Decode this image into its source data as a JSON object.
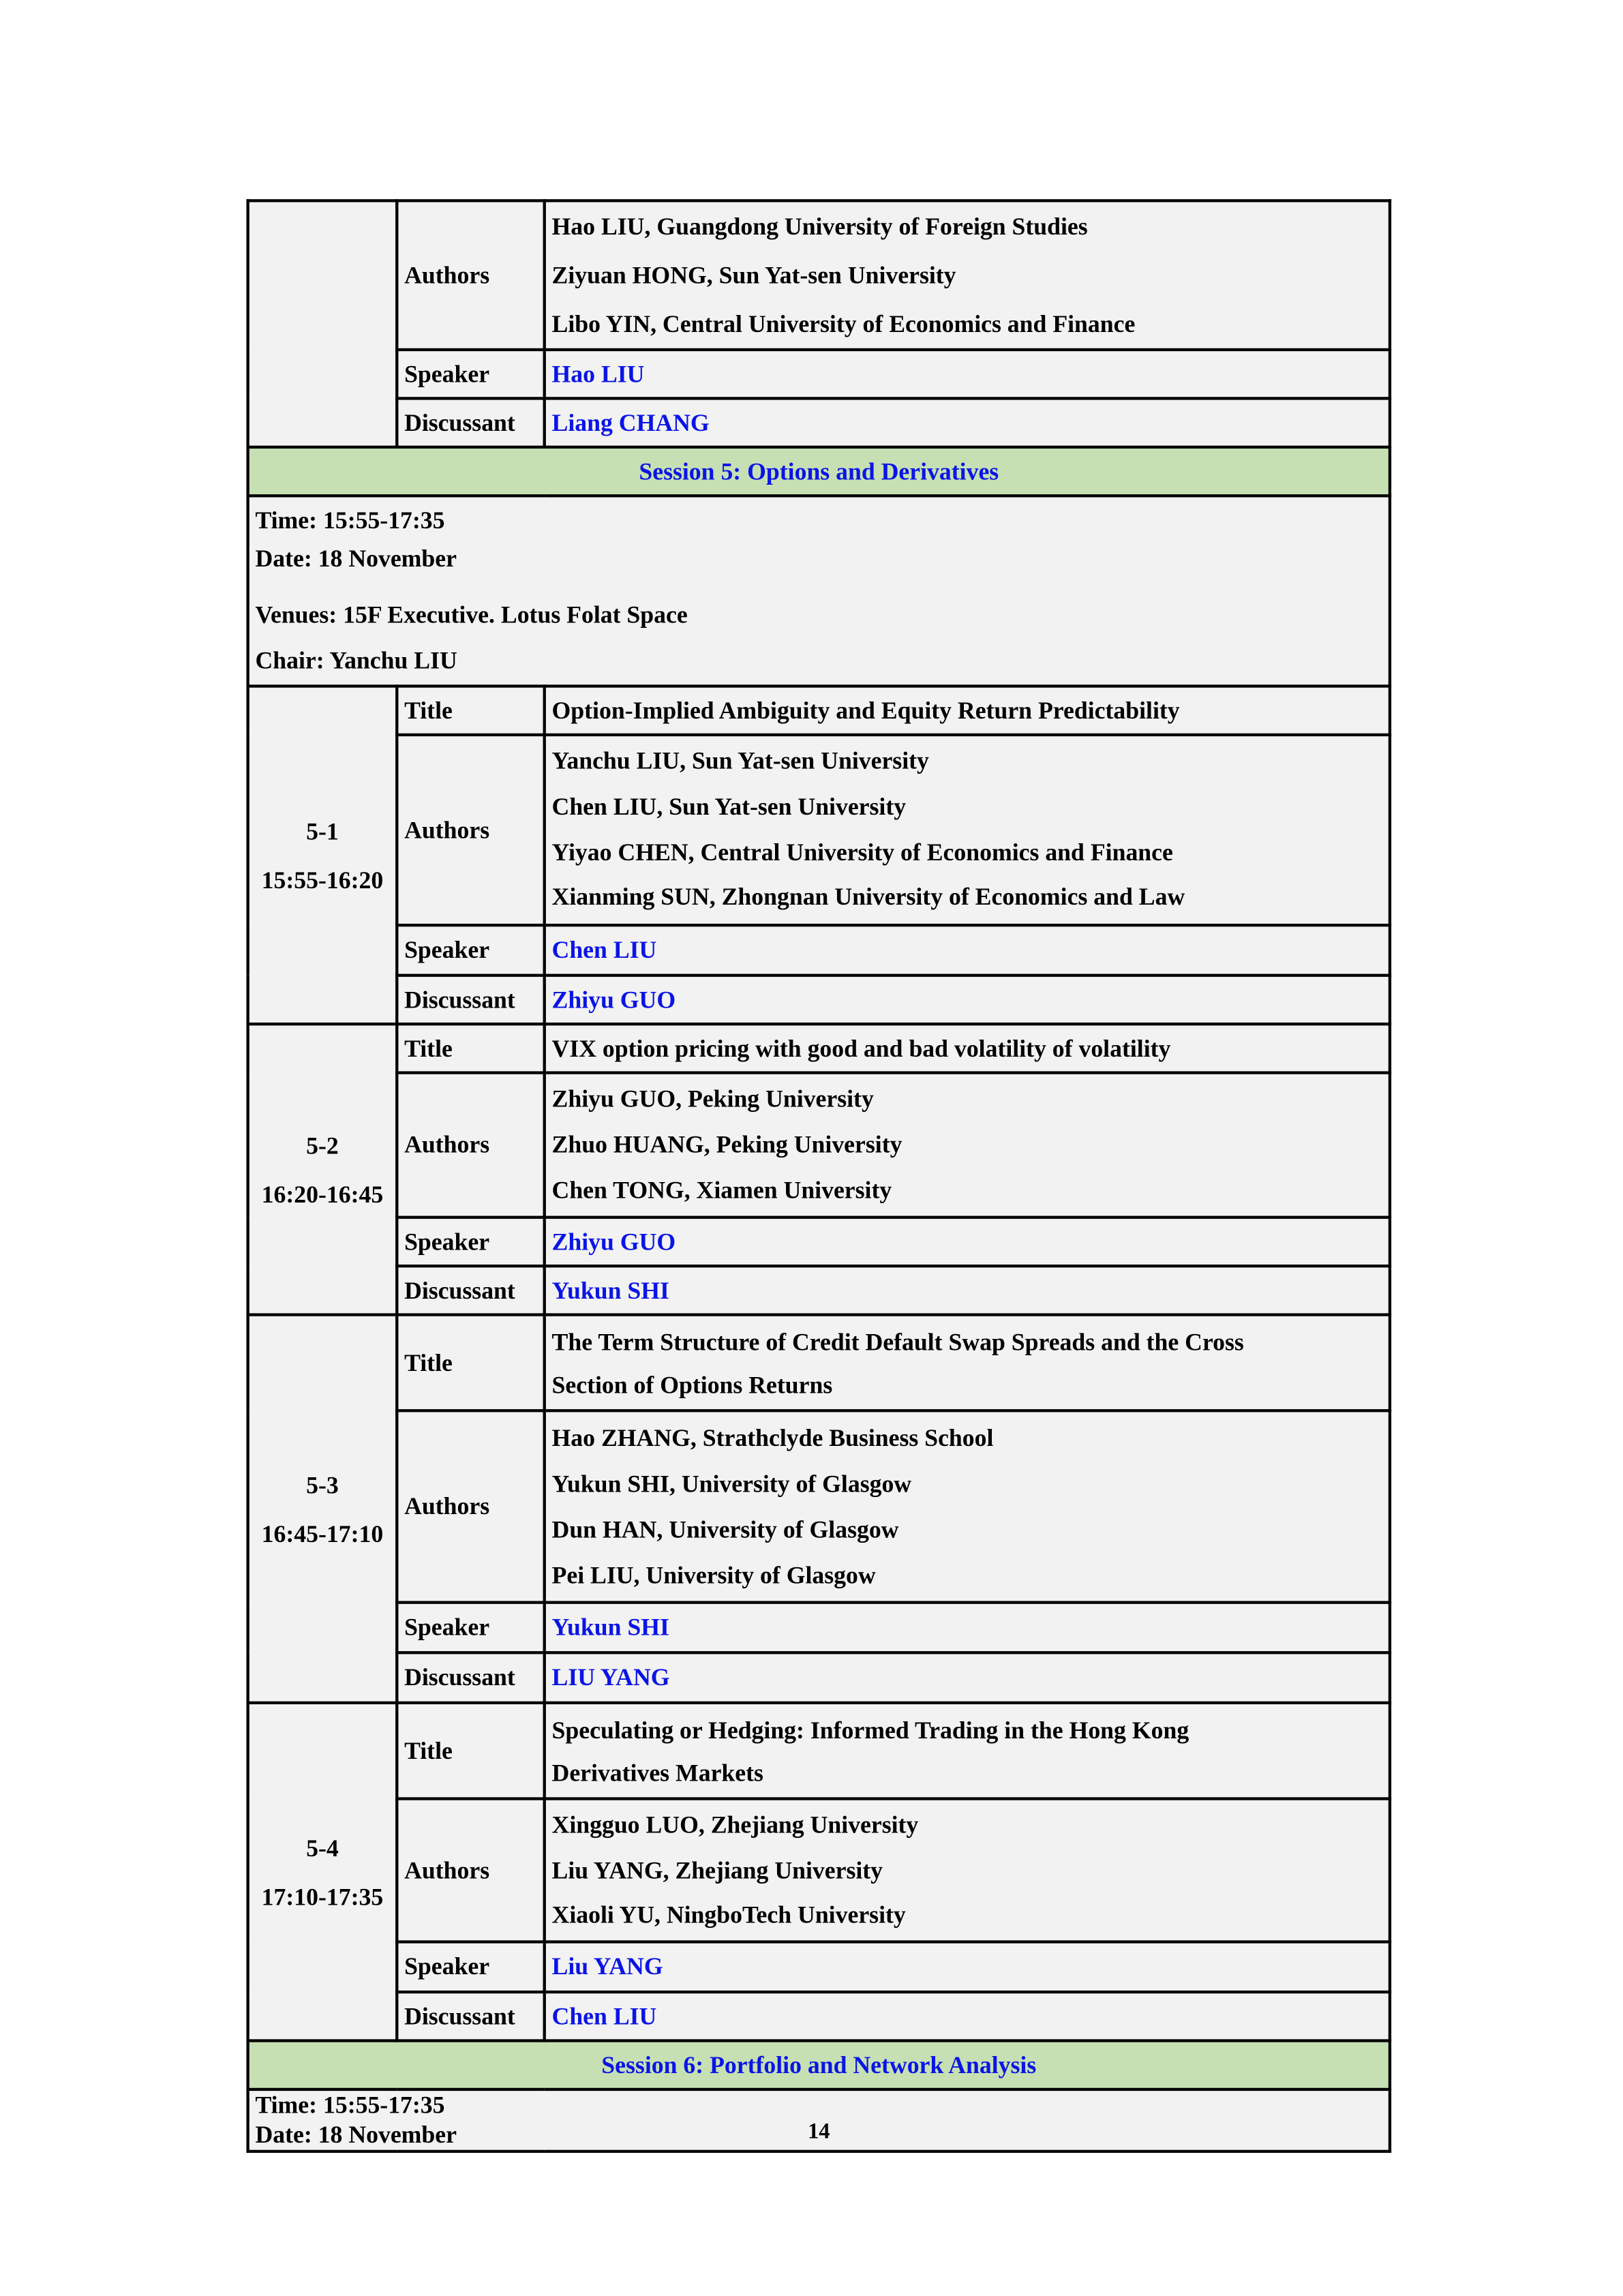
{
  "continued": {
    "authors_label": "Authors",
    "authors": [
      "Hao LIU, Guangdong University of Foreign Studies",
      "Ziyuan HONG, Sun Yat-sen University",
      "Libo YIN, Central University of Economics and Finance"
    ],
    "speaker_label": "Speaker",
    "speaker": "Hao LIU",
    "discussant_label": "Discussant",
    "discussant": "Liang CHANG"
  },
  "session5": {
    "header": "Session 5: Options and Derivatives",
    "time": "Time: 15:55-17:35",
    "date": "Date: 18 November",
    "venue": "Venues: 15F Executive. Lotus Folat Space",
    "chair": "Chair: Yanchu LIU",
    "papers": [
      {
        "id": "5-1",
        "time": "15:55-16:20",
        "title": [
          "Option-Implied Ambiguity and Equity Return Predictability"
        ],
        "authors": [
          "Yanchu LIU, Sun Yat-sen University",
          "Chen LIU, Sun Yat-sen University",
          "Yiyao CHEN, Central University of Economics and Finance",
          "Xianming SUN, Zhongnan University of Economics and Law"
        ],
        "speaker": "Chen LIU",
        "discussant": "Zhiyu GUO"
      },
      {
        "id": "5-2",
        "time": "16:20-16:45",
        "title": [
          "VIX option pricing with good and bad volatility of volatility"
        ],
        "authors": [
          "Zhiyu GUO, Peking University",
          "Zhuo HUANG, Peking University",
          "Chen TONG, Xiamen University"
        ],
        "speaker": "Zhiyu GUO",
        "discussant": "Yukun SHI"
      },
      {
        "id": "5-3",
        "time": "16:45-17:10",
        "title": [
          "The Term Structure of Credit Default Swap Spreads and the Cross",
          "Section of Options Returns"
        ],
        "authors": [
          "Hao ZHANG, Strathclyde Business School",
          "Yukun SHI, University of Glasgow",
          "Dun HAN, University of Glasgow",
          "Pei LIU, University of Glasgow"
        ],
        "speaker": "Yukun SHI",
        "discussant": "LIU YANG"
      },
      {
        "id": "5-4",
        "time": "17:10-17:35",
        "title": [
          "Speculating or Hedging: Informed Trading in the Hong Kong",
          "Derivatives Markets"
        ],
        "authors": [
          "Xingguo LUO, Zhejiang University",
          "Liu YANG, Zhejiang University",
          "Xiaoli YU, NingboTech University"
        ],
        "speaker": "Liu YANG",
        "discussant": "Chen LIU"
      }
    ]
  },
  "labels": {
    "title": "Title",
    "authors": "Authors",
    "speaker": "Speaker",
    "discussant": "Discussant"
  },
  "session6": {
    "header": "Session 6: Portfolio and Network Analysis",
    "time": "Time: 15:55-17:35",
    "date": "Date: 18 November"
  },
  "page_number": "14",
  "colors": {
    "session_header_bg": "#c6e0b4",
    "cell_bg": "#f2f2f2",
    "name_blue": "#0a14e6"
  }
}
